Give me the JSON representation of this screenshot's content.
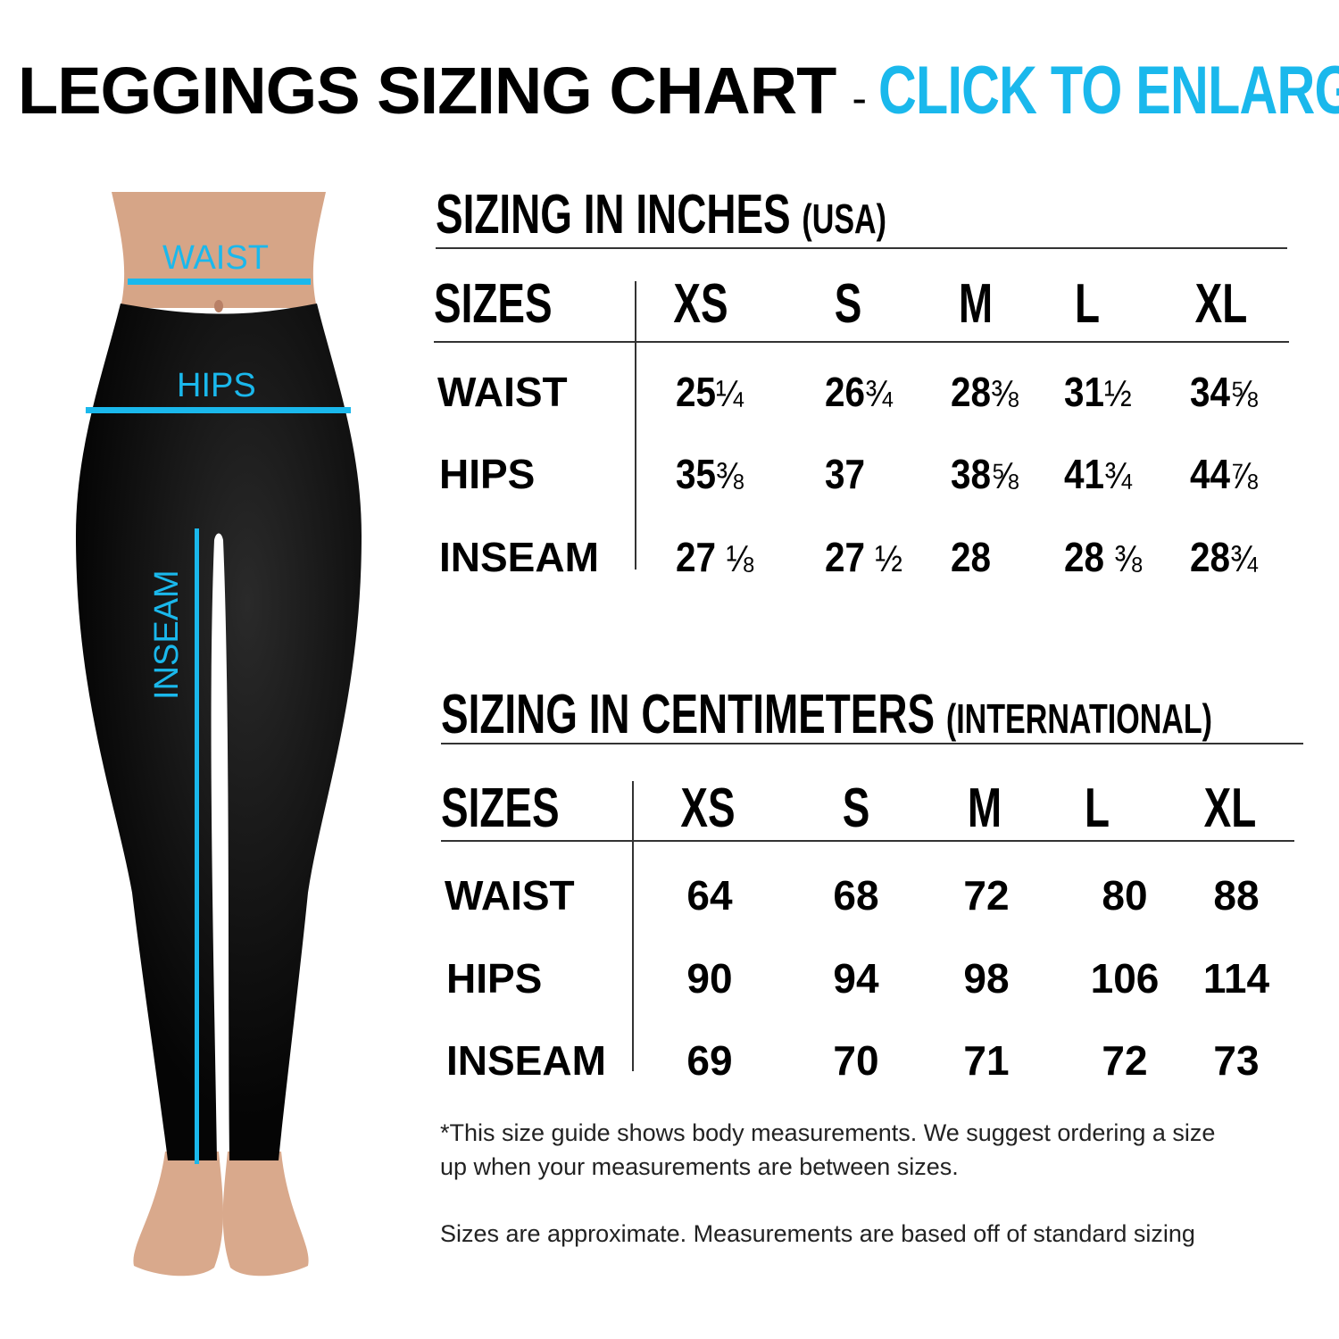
{
  "title": {
    "main": "LEGGINGS SIZING CHART",
    "separator": "-",
    "cta": "CLICK TO ENLARGE"
  },
  "colors": {
    "accent": "#1ab8ec",
    "text": "#000000",
    "leggings": "#0a0a0a",
    "skin": "#d9a98c"
  },
  "figure": {
    "labels": {
      "waist": "WAIST",
      "hips": "HIPS",
      "inseam": "INSEAM"
    }
  },
  "inches": {
    "heading": "SIZING IN INCHES",
    "heading_note": "(USA)",
    "header": {
      "label": "SIZES",
      "sizes": [
        "XS",
        "S",
        "M",
        "L",
        "XL"
      ]
    },
    "rows": [
      {
        "label": "WAIST",
        "values": [
          {
            "whole": "25",
            "frac": "¼"
          },
          {
            "whole": "26",
            "frac": "¾"
          },
          {
            "whole": "28",
            "frac": "⅜"
          },
          {
            "whole": "31",
            "frac": "½"
          },
          {
            "whole": "34",
            "frac": "⅝"
          }
        ]
      },
      {
        "label": "HIPS",
        "values": [
          {
            "whole": "35",
            "frac": "⅜"
          },
          {
            "whole": "37",
            "frac": ""
          },
          {
            "whole": "38",
            "frac": "⅝"
          },
          {
            "whole": "41",
            "frac": "¾"
          },
          {
            "whole": "44",
            "frac": "⅞"
          }
        ]
      },
      {
        "label": "INSEAM",
        "values": [
          {
            "whole": "27 ",
            "frac": "⅛"
          },
          {
            "whole": "27 ",
            "frac": "½"
          },
          {
            "whole": "28",
            "frac": ""
          },
          {
            "whole": "28 ",
            "frac": "⅜"
          },
          {
            "whole": "28",
            "frac": "¾"
          }
        ]
      }
    ]
  },
  "centimeters": {
    "heading": "SIZING IN CENTIMETERS",
    "heading_note": "(INTERNATIONAL)",
    "header": {
      "label": "SIZES",
      "sizes": [
        "XS",
        "S",
        "M",
        "L",
        "XL"
      ]
    },
    "rows": [
      {
        "label": "WAIST",
        "values": [
          "64",
          "68",
          "72",
          "80",
          "88"
        ]
      },
      {
        "label": "HIPS",
        "values": [
          "90",
          "94",
          "98",
          "106",
          "114"
        ]
      },
      {
        "label": "INSEAM",
        "values": [
          "69",
          "70",
          "71",
          "72",
          "73"
        ]
      }
    ]
  },
  "notes": {
    "line1": "*This size guide shows body measurements. We suggest ordering a size",
    "line2": "up when your measurements are between sizes.",
    "line3": "Sizes are approximate. Measurements are based off of standard sizing"
  }
}
